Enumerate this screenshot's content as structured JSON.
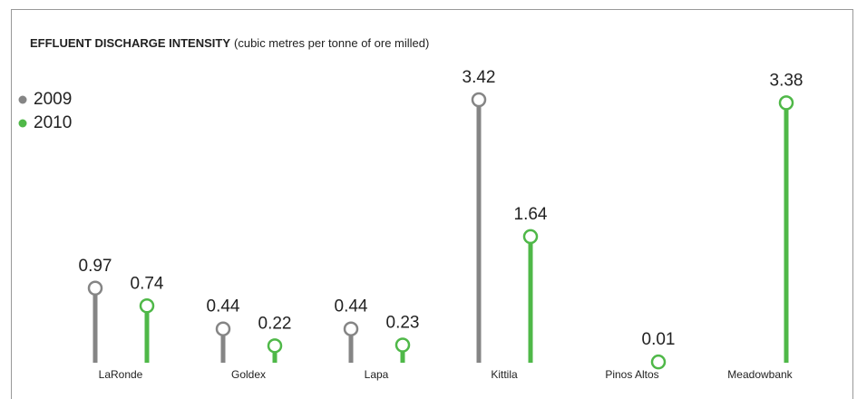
{
  "chart_data": {
    "type": "lollipop",
    "title": "EFFLUENT DISCHARGE INTENSITY",
    "subtitle": "(cubic metres per tonne of ore milled)",
    "categories": [
      "LaRonde",
      "Goldex",
      "Lapa",
      "Kittila",
      "Pinos Altos",
      "Meadowbank"
    ],
    "series": [
      {
        "name": "2009",
        "color": "#858585",
        "values": [
          0.97,
          0.44,
          0.44,
          3.42,
          null,
          null
        ]
      },
      {
        "name": "2010",
        "color": "#4fb848",
        "values": [
          0.74,
          0.22,
          0.23,
          1.64,
          0.01,
          3.38
        ]
      }
    ]
  }
}
